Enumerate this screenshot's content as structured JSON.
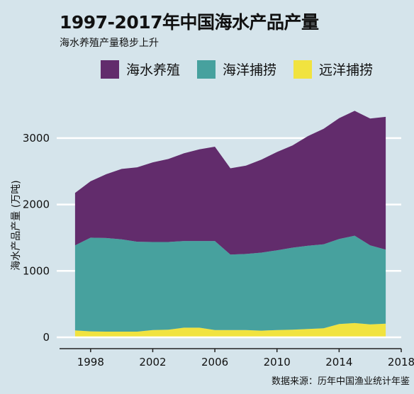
{
  "title": "1997-2017年中国海水产品产量",
  "subtitle": "海水养殖产量稳步上升",
  "source": "数据来源：历年中国渔业统计年鉴",
  "chart_data": {
    "type": "area",
    "stacked": true,
    "title": "1997-2017年中国海水产品产量",
    "subtitle": "海水养殖产量稳步上升",
    "ylabel": "海水产品产量 (万吨)",
    "xlim": [
      1996,
      2018
    ],
    "ylim": [
      0,
      3500
    ],
    "x_ticks": [
      1998,
      2002,
      2006,
      2010,
      2014,
      2018
    ],
    "y_ticks": [
      0,
      1000,
      2000,
      3000
    ],
    "grid": "horizontal",
    "legend_position": "top",
    "x": [
      1997,
      1998,
      1999,
      2000,
      2001,
      2002,
      2003,
      2004,
      2005,
      2006,
      2007,
      2008,
      2009,
      2010,
      2011,
      2012,
      2013,
      2014,
      2015,
      2016,
      2017
    ],
    "series": [
      {
        "name": "远洋捕捞",
        "color": "#f1e33f",
        "values": [
          105,
          90,
          85,
          85,
          85,
          110,
          115,
          145,
          145,
          110,
          110,
          110,
          100,
          110,
          115,
          125,
          135,
          200,
          215,
          195,
          205
        ]
      },
      {
        "name": "海洋捕捞",
        "color": "#47a19e",
        "values": [
          1280,
          1410,
          1410,
          1390,
          1355,
          1325,
          1320,
          1305,
          1305,
          1340,
          1135,
          1145,
          1175,
          1200,
          1235,
          1255,
          1265,
          1280,
          1315,
          1190,
          1115
        ]
      },
      {
        "name": "海水养殖",
        "color": "#622c6c",
        "values": [
          790,
          850,
          960,
          1060,
          1120,
          1200,
          1250,
          1320,
          1380,
          1420,
          1300,
          1330,
          1400,
          1480,
          1540,
          1650,
          1740,
          1820,
          1880,
          1910,
          2000
        ]
      }
    ]
  }
}
